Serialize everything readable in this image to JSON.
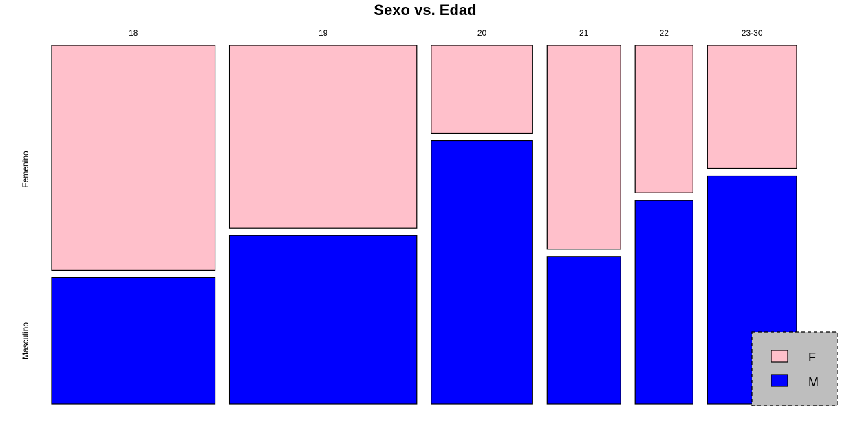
{
  "chart_data": {
    "type": "mosaic",
    "title": "Sexo vs. Edad",
    "categories": [
      "18",
      "19",
      "20",
      "21",
      "22",
      "23-30"
    ],
    "column_widths": [
      0.24,
      0.275,
      0.149,
      0.108,
      0.085,
      0.131
    ],
    "row_labels": [
      "Femenino",
      "Masculino"
    ],
    "series": [
      {
        "name": "F",
        "color": "#FFC0CB",
        "values": [
          0.64,
          0.52,
          0.25,
          0.58,
          0.42,
          0.35
        ]
      },
      {
        "name": "M",
        "color": "#0000FF",
        "values": [
          0.36,
          0.48,
          0.75,
          0.42,
          0.58,
          0.65
        ]
      }
    ],
    "legend": {
      "position": "bottom-right",
      "items": [
        "F",
        "M"
      ],
      "background": "#BEBEBE"
    }
  }
}
